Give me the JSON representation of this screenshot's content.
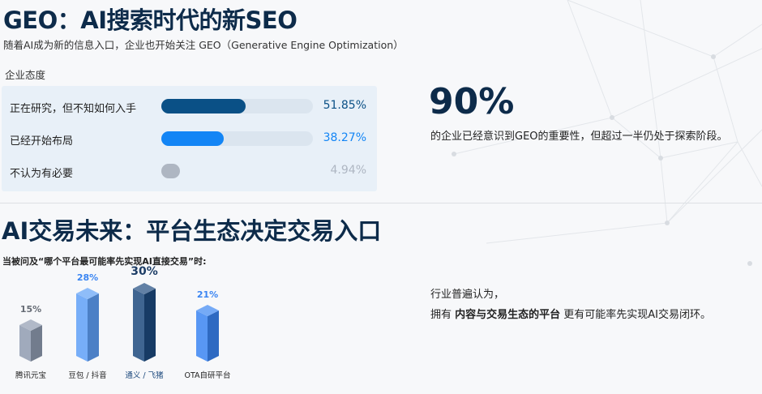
{
  "title": "GEO：AI搜索时代的新SEO",
  "subtitle": "随着AI成为新的信息入口，企业也开始关注 GEO（Generative Engine Optimization）",
  "attitude": {
    "heading": "企业态度",
    "items": [
      {
        "label": "正在研究，但不知如何入手",
        "value": "51.85%",
        "fraction": 0.5185,
        "color": "#0a5086"
      },
      {
        "label": "已经开始布局",
        "value": "38.27%",
        "fraction": 0.3827,
        "color": "#1385f5"
      },
      {
        "label": "不认为有必要",
        "value": "4.94%",
        "fraction": 0.0494,
        "color": "#aeb6c2"
      }
    ]
  },
  "highlight": {
    "value": "90%",
    "text": "的企业已经意识到GEO的重要性，但超过一半仍处于探索阶段。"
  },
  "section2": {
    "title": "AI交易未来：平台生态决定交易入口",
    "question": "当被问及“哪个平台最可能率先实现AI直接交易”时:",
    "conclusion_line1": "行业普遍认为，",
    "conclusion_pre": "拥有 ",
    "conclusion_bold": "内容与交易生态的平台",
    "conclusion_post": " 更有可能率先实现AI交易闭环。"
  },
  "chart_data": {
    "type": "bar",
    "title": "",
    "categories": [
      "腾讯元宝",
      "豆包 / 抖音",
      "通义 / 飞猪",
      "OTA自研平台"
    ],
    "values": [
      15,
      28,
      30,
      21
    ],
    "labels": [
      "15%",
      "28%",
      "30%",
      "21%"
    ],
    "colors": [
      "#8f9bb0",
      "#5fa0f7",
      "#1d4a7e",
      "#3a85f2"
    ],
    "label_colors": [
      "#666c75",
      "#3a85f2",
      "#1d3d66",
      "#3a85f2"
    ]
  }
}
